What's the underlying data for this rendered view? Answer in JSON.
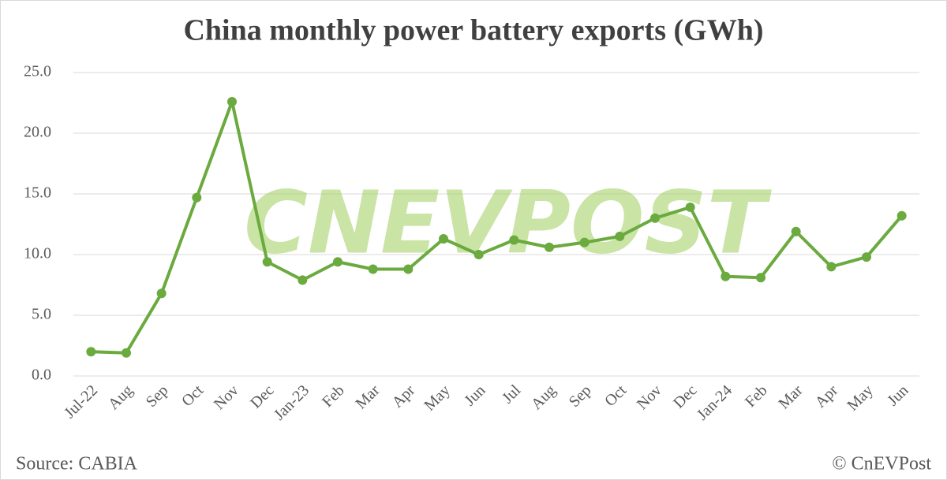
{
  "chart_data": {
    "type": "line",
    "title": "China monthly power battery exports (GWh)",
    "categories": [
      "Jul-22",
      "Aug",
      "Sep",
      "Oct",
      "Nov",
      "Dec",
      "Jan-23",
      "Feb",
      "Mar",
      "Apr",
      "May",
      "Jun",
      "Jul",
      "Aug",
      "Sep",
      "Oct",
      "Nov",
      "Dec",
      "Jan-24",
      "Feb",
      "Mar",
      "Apr",
      "May",
      "Jun"
    ],
    "series": [
      {
        "name": "Power battery exports",
        "color": "#6aaa3e",
        "values": [
          2.0,
          1.9,
          6.8,
          14.7,
          22.6,
          9.4,
          7.9,
          9.4,
          8.8,
          8.8,
          11.3,
          10.0,
          11.2,
          10.6,
          11.0,
          11.5,
          13.0,
          13.9,
          8.2,
          8.1,
          11.9,
          9.0,
          9.8,
          13.2
        ]
      }
    ],
    "ylim": [
      0,
      25
    ],
    "yticks": [
      {
        "value": 0,
        "label": "0.0"
      },
      {
        "value": 5,
        "label": "5.0"
      },
      {
        "value": 10,
        "label": "10.0"
      },
      {
        "value": 15,
        "label": "15.0"
      },
      {
        "value": 20,
        "label": "20.0"
      },
      {
        "value": 25,
        "label": "25.0"
      }
    ],
    "grid": true,
    "watermark": "CNEVPOST",
    "source": "Source: CABIA",
    "credit": "© CnEVPost"
  }
}
